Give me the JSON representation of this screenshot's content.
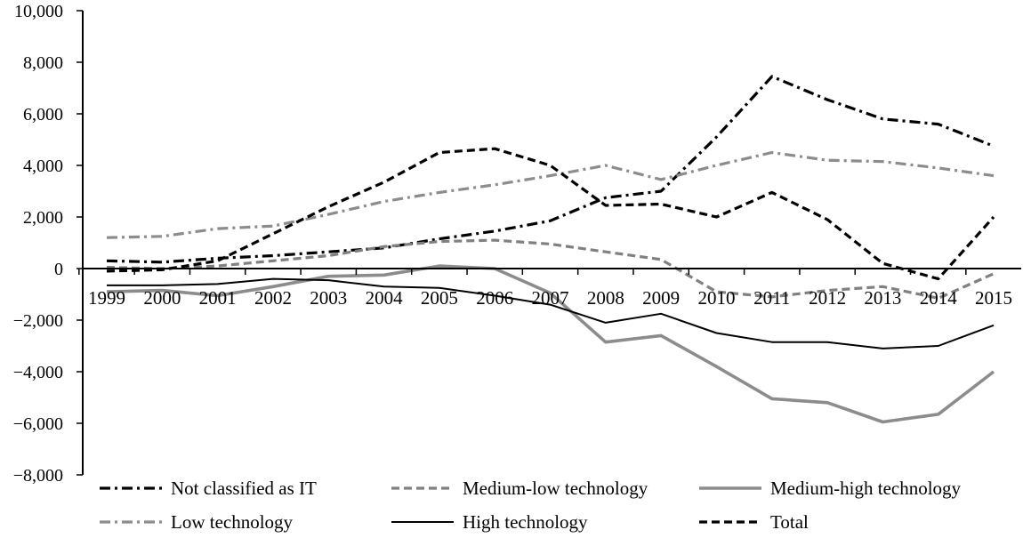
{
  "chart_data": {
    "type": "line",
    "title": "",
    "xlabel": "",
    "ylabel": "",
    "categories": [
      "1999",
      "2000",
      "2001",
      "2002",
      "2003",
      "2004",
      "2005",
      "2006",
      "2007",
      "2008",
      "2009",
      "2010",
      "2011",
      "2012",
      "2013",
      "2014",
      "2015"
    ],
    "ylim": [
      -8000,
      10000
    ],
    "yticks": [
      10000,
      8000,
      6000,
      4000,
      2000,
      0,
      -2000,
      -4000,
      -6000,
      -8000
    ],
    "ytick_labels": [
      "10,000",
      "8,000",
      "6,000",
      "4,000",
      "2,000",
      "0",
      "−2,000",
      "−4,000",
      "−6,000",
      "−8,000"
    ],
    "legend_position": "bottom",
    "series": [
      {
        "name": "Not classified as IT",
        "color": "#000000",
        "dash": "dash-dot",
        "values": [
          300,
          250,
          400,
          500,
          650,
          800,
          1150,
          1450,
          1850,
          2750,
          3000,
          5100,
          7450,
          6550,
          5800,
          5600,
          4750
        ]
      },
      {
        "name": "Medium-low technology",
        "color": "#808080",
        "dash": "dashed",
        "values": [
          50,
          0,
          100,
          300,
          500,
          850,
          1050,
          1100,
          950,
          650,
          350,
          -900,
          -1100,
          -850,
          -700,
          -1150,
          -200
        ]
      },
      {
        "name": "Medium-high technology",
        "color": "#8c8c8c",
        "dash": "solid-thick",
        "values": [
          -900,
          -850,
          -1050,
          -700,
          -300,
          -250,
          100,
          0,
          -950,
          -2850,
          -2600,
          -3800,
          -5050,
          -5200,
          -5950,
          -5650,
          -4000
        ]
      },
      {
        "name": "Low technology",
        "color": "#8c8c8c",
        "dash": "dash-dot",
        "values": [
          1200,
          1250,
          1550,
          1650,
          2100,
          2600,
          2950,
          3250,
          3600,
          4000,
          3450,
          4000,
          4500,
          4200,
          4150,
          3900,
          3600
        ]
      },
      {
        "name": "High technology",
        "color": "#000000",
        "dash": "solid-thin",
        "values": [
          -650,
          -650,
          -600,
          -400,
          -450,
          -700,
          -750,
          -1050,
          -1400,
          -2100,
          -1750,
          -2500,
          -2850,
          -2850,
          -3100,
          -3000,
          -2200
        ]
      },
      {
        "name": "Total",
        "color": "#000000",
        "dash": "dashed",
        "values": [
          -100,
          -50,
          300,
          1350,
          2400,
          3350,
          4500,
          4650,
          4000,
          2450,
          2500,
          2000,
          2950,
          1900,
          200,
          -400,
          2000
        ]
      }
    ]
  }
}
